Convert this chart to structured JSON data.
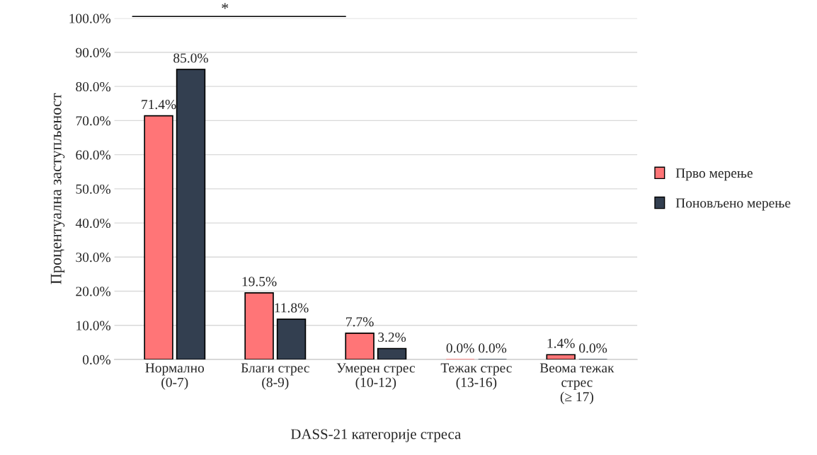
{
  "chart_data": {
    "type": "bar",
    "xlabel": "DASS-21 категорије стреса",
    "ylabel": "Процентуална заступљеност",
    "categories": [
      "Нормално\n(0-7)",
      "Благи стрес\n(8-9)",
      "Умерен стрес\n(10-12)",
      "Тежак стрес\n(13-16)",
      "Веома тежак\nстрес\n(≥ 17)"
    ],
    "series": [
      {
        "name": "Прво мерење",
        "color": "#ff7577",
        "values": [
          71.4,
          19.5,
          7.7,
          0.0,
          1.4
        ],
        "value_labels": [
          "71.4%",
          "19.5%",
          "7.7%",
          "0.0%",
          "1.4%"
        ]
      },
      {
        "name": "Поновљено мерење",
        "color": "#333f50",
        "values": [
          85.0,
          11.8,
          3.2,
          0.0,
          0.0
        ],
        "value_labels": [
          "85.0%",
          "11.8%",
          "3.2%",
          "0.0%",
          "0.0%"
        ]
      }
    ],
    "ylim": [
      0,
      100
    ],
    "yticks": [
      {
        "value": 0,
        "label": "0.0%"
      },
      {
        "value": 10,
        "label": "10.0%"
      },
      {
        "value": 20,
        "label": "20.0%"
      },
      {
        "value": 30,
        "label": "30.0%"
      },
      {
        "value": 40,
        "label": "40.0%"
      },
      {
        "value": 50,
        "label": "50.0%"
      },
      {
        "value": 60,
        "label": "60.0%"
      },
      {
        "value": 70,
        "label": "70.0%"
      },
      {
        "value": 80,
        "label": "80.0%"
      },
      {
        "value": 90,
        "label": "90.0%"
      },
      {
        "value": 100,
        "label": "100.0%"
      }
    ],
    "annotations": [
      "*"
    ],
    "grid": "y",
    "legend": "right"
  }
}
